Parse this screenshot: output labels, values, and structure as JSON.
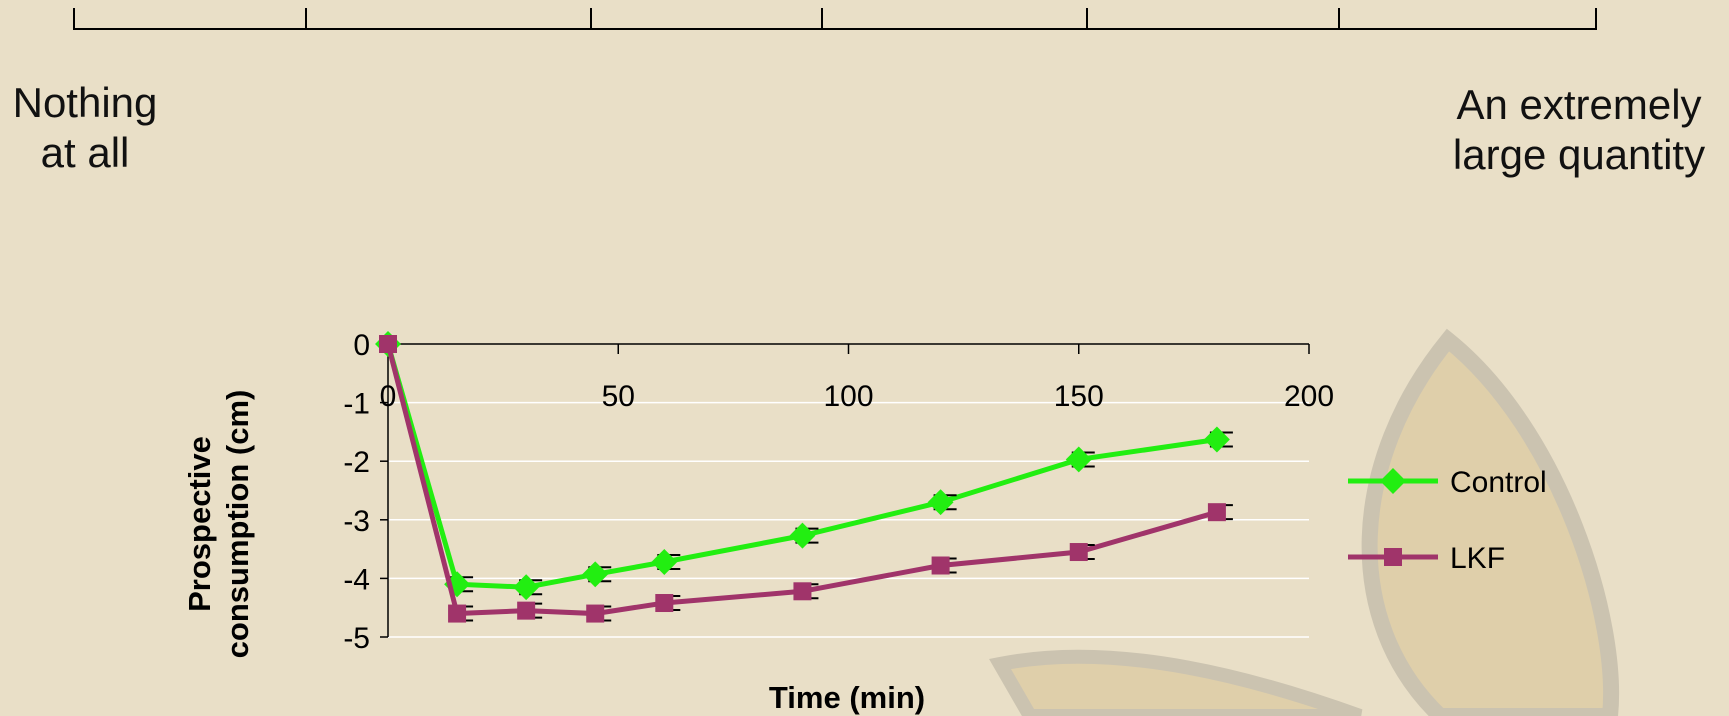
{
  "scale": {
    "left_anchor_lines": [
      "Nothing",
      "at all"
    ],
    "right_anchor_lines": [
      "An extremely",
      "large quantity"
    ],
    "tick_count": 7
  },
  "colors": {
    "background": "#e9dfc7",
    "leaf_fill": "#dfcfaa",
    "leaf_stroke": "#cbc3b0",
    "control": "#22ee11",
    "lkf": "#a0346a"
  },
  "chart_data": {
    "type": "line",
    "title": "",
    "xlabel": "Time (min)",
    "ylabel_lines": [
      "Prospective",
      "consumption (cm)"
    ],
    "xlim": [
      0,
      200
    ],
    "ylim": [
      -5,
      0
    ],
    "x_ticks": [
      "0",
      "50",
      "100",
      "150",
      "200"
    ],
    "y_ticks": [
      "0",
      "-1",
      "-2",
      "-3",
      "-4",
      "-5"
    ],
    "grid": "horizontal",
    "legend_position": "right",
    "x": [
      0,
      15,
      30,
      45,
      60,
      90,
      120,
      150,
      180
    ],
    "series": [
      {
        "name": "Control",
        "marker": "diamond",
        "color": "#22ee11",
        "values": [
          0,
          -4.1,
          -4.15,
          -3.93,
          -3.72,
          -3.27,
          -2.7,
          -1.97,
          -1.63
        ]
      },
      {
        "name": "LKF",
        "marker": "square",
        "color": "#a0346a",
        "values": [
          0,
          -4.6,
          -4.55,
          -4.6,
          -4.42,
          -4.22,
          -3.78,
          -3.55,
          -2.87
        ]
      }
    ]
  }
}
